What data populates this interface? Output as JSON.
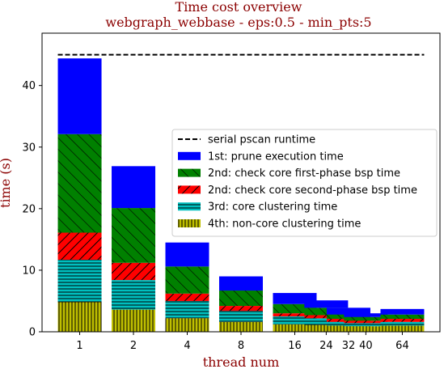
{
  "chart_data": {
    "type": "bar",
    "title": "Time cost overview",
    "subtitle": "webgraph_webbase - eps:0.5 - min_pts:5",
    "xlabel": "thread num",
    "ylabel": "time (s)",
    "ylim": [
      0,
      48.5
    ],
    "yticks": [
      0,
      10,
      20,
      30,
      40
    ],
    "x": [
      1,
      2,
      4,
      8,
      16,
      24,
      32,
      40,
      64
    ],
    "x_scale": "log2",
    "legend_position": "center-right",
    "grid": false,
    "serial_line": {
      "name": "serial pscan runtime",
      "value": 45,
      "color": "#000000",
      "style": "dashed"
    },
    "series": [
      {
        "name": "4th: non-core clustering time",
        "color": "#bfbf00",
        "hatch": "vertical-lines",
        "values": [
          4.8,
          3.6,
          2.2,
          1.6,
          1.2,
          1.1,
          1.0,
          0.9,
          1.0
        ]
      },
      {
        "name": "3rd: core clustering time",
        "color": "#00bfbf",
        "hatch": "horizontal-lines",
        "values": [
          6.9,
          4.8,
          2.8,
          1.8,
          1.3,
          1.1,
          0.6,
          0.5,
          0.6
        ]
      },
      {
        "name": "2nd: check core second-phase bsp time",
        "color": "#ff0000",
        "hatch": "diagonal-lines",
        "values": [
          4.4,
          2.8,
          1.2,
          0.8,
          0.5,
          0.5,
          0.5,
          0.4,
          0.5
        ]
      },
      {
        "name": "2nd: check core first-phase bsp time",
        "color": "#008000",
        "hatch": "diagonal-lines",
        "values": [
          16.0,
          8.9,
          4.4,
          2.5,
          1.5,
          1.2,
          0.7,
          0.6,
          0.7
        ]
      },
      {
        "name": "1st: prune execution time",
        "color": "#0000ff",
        "hatch": "none",
        "values": [
          12.3,
          6.8,
          3.9,
          2.3,
          1.8,
          1.2,
          1.1,
          0.6,
          0.9
        ]
      }
    ],
    "legend_order": [
      "serial pscan runtime",
      "1st: prune execution time",
      "2nd: check core first-phase bsp time",
      "2nd: check core second-phase bsp time",
      "3rd: core clustering time",
      "4th: non-core clustering time"
    ]
  }
}
